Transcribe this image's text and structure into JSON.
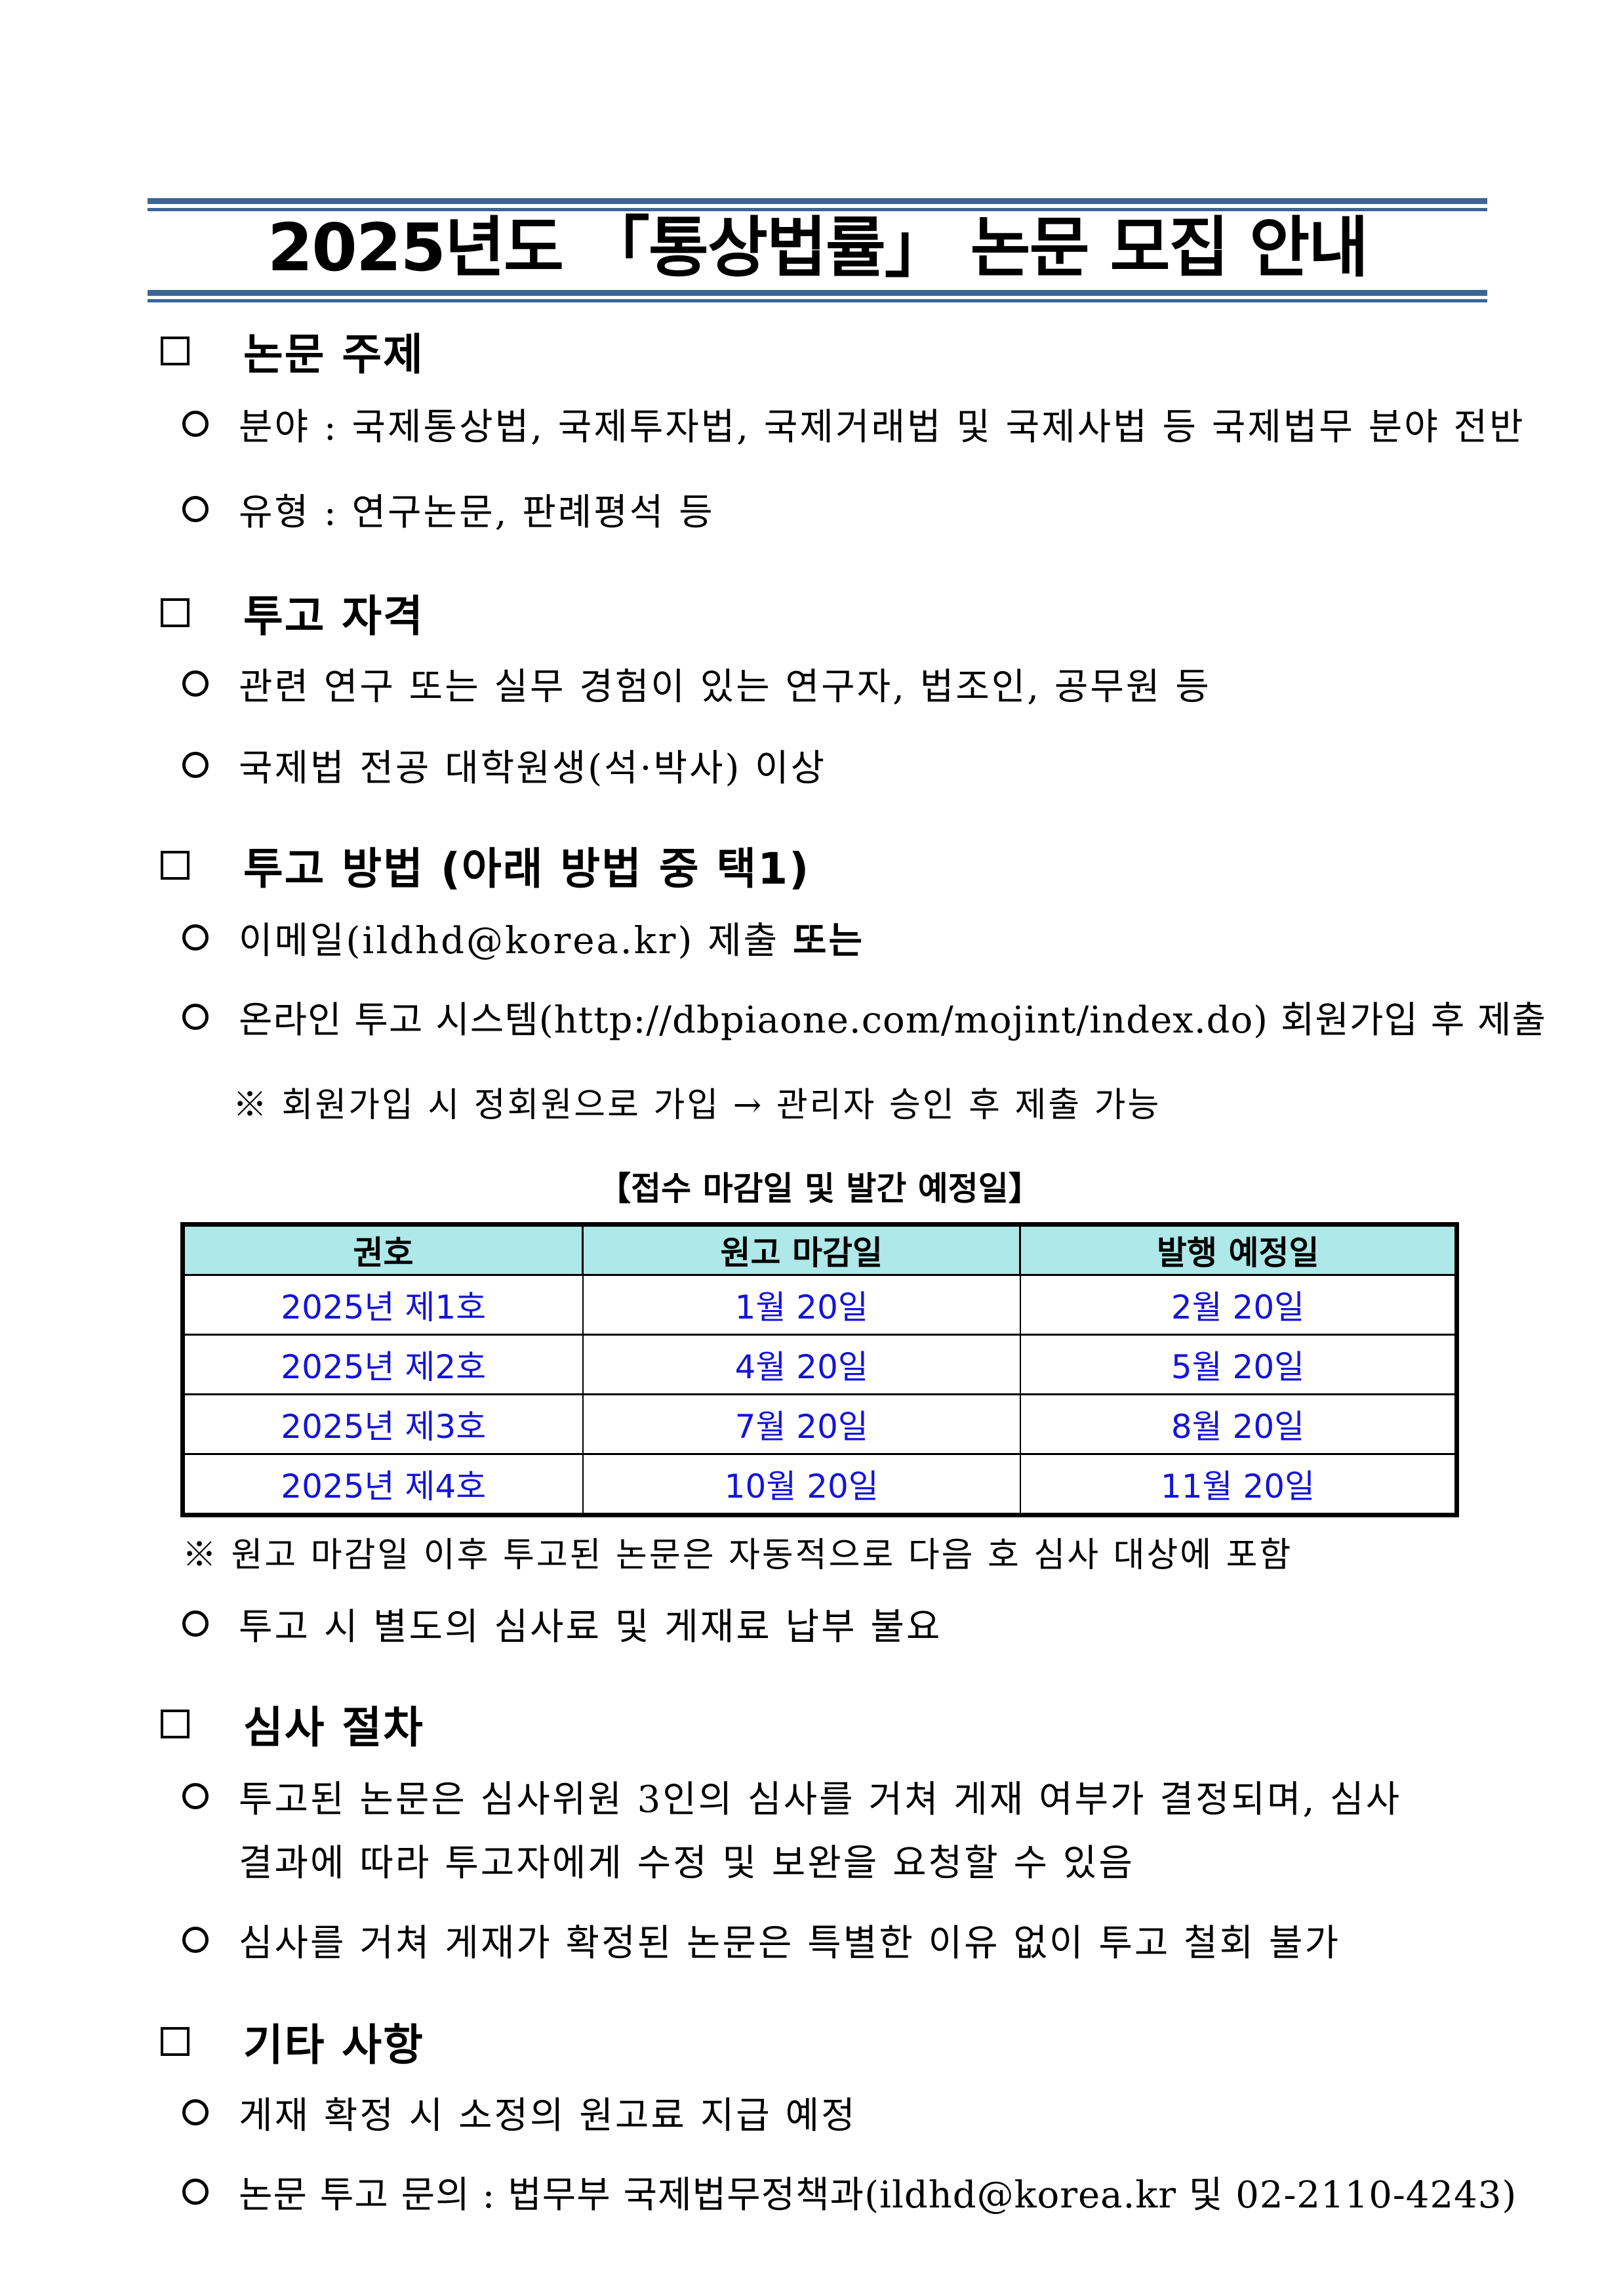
{
  "title": "2025년도 「통상법률」 논문 모집 안내",
  "sections": {
    "topic": {
      "heading": "논문 주제",
      "items": [
        "분야 : 국제통상법, 국제투자법, 국제거래법 및 국제사법 등 국제법무 분야 전반",
        "유형 : 연구논문, 판례평석 등"
      ]
    },
    "eligibility": {
      "heading": "투고 자격",
      "items": [
        "관련 연구 또는 실무 경험이 있는 연구자, 법조인, 공무원 등",
        "국제법 전공 대학원생(석·박사) 이상"
      ]
    },
    "method": {
      "heading": "투고 방법 (아래 방법 중 택1)",
      "email_item": "이메일(ildhd@korea.kr) 제출",
      "email_item_bold": "또는",
      "online_item": "온라인 투고 시스템(http://dbpiaone.com/mojint/index.do) 회원가입 후 제출",
      "note": "※ 회원가입 시 정회원으로 가입 → 관리자 승인 후 제출 가능"
    },
    "schedule": {
      "caption": "【접수 마감일 및 발간 예정일】",
      "headers": [
        "권호",
        "원고 마감일",
        "발행 예정일"
      ],
      "rows": [
        [
          "2025년 제1호",
          "1월 20일",
          "2월 20일"
        ],
        [
          "2025년 제2호",
          "4월 20일",
          "5월 20일"
        ],
        [
          "2025년 제3호",
          "7월 20일",
          "8월 20일"
        ],
        [
          "2025년 제4호",
          "10월 20일",
          "11월 20일"
        ]
      ],
      "note": "※ 원고 마감일 이후 투고된 논문은 자동적으로 다음 호 심사 대상에 포함",
      "fee_item": "투고 시 별도의 심사료 및 게재료 납부 불요"
    },
    "review": {
      "heading": "심사 절차",
      "item1_line1": "투고된 논문은 심사위원 3인의 심사를 거쳐 게재 여부가 결정되며, 심사",
      "item1_line2": "결과에 따라 투고자에게 수정 및 보완을 요청할 수 있음",
      "item2": "심사를 거쳐 게재가 확정된 논문은 특별한 이유 없이 투고 철회 불가"
    },
    "etc": {
      "heading": "기타 사항",
      "items": [
        "게재 확정 시 소정의 원고료 지급 예정",
        "논문 투고 문의 : 법무부 국제법무정책과(ildhd@korea.kr 및 02-2110-4243)"
      ]
    }
  },
  "colors": {
    "rule": "#3a6598",
    "table_header": "#aee8e8",
    "table_text": "#1414d8"
  }
}
